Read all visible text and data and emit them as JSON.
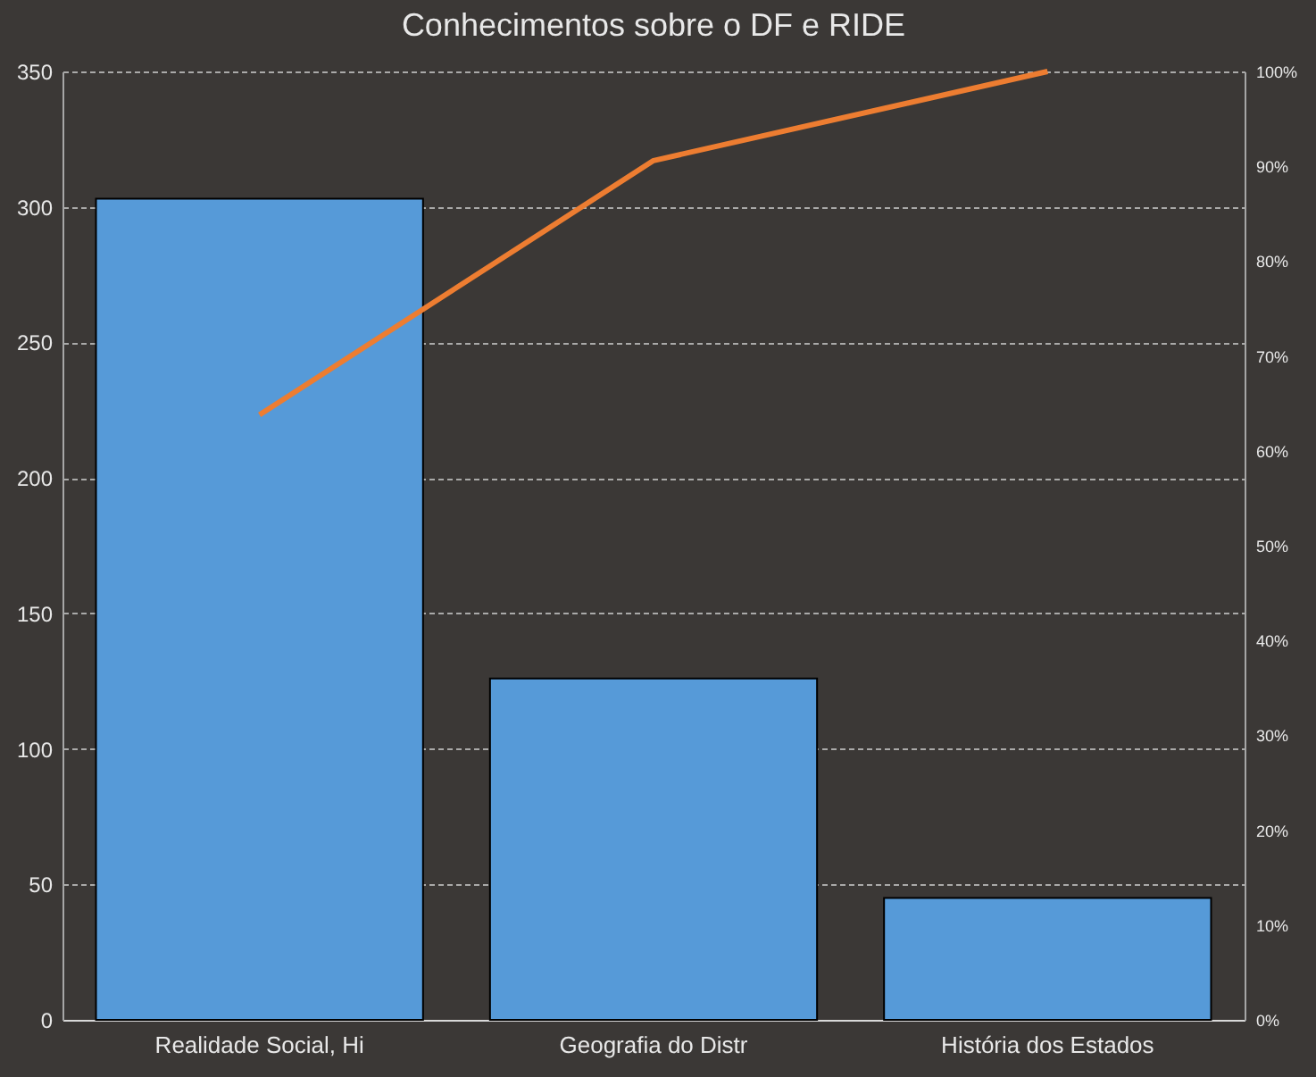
{
  "chart_data": {
    "type": "bar",
    "title": "Conhecimentos  sobre o DF e RIDE",
    "categories": [
      "Realidade Social, Hi",
      "Geografia do Distr",
      "História dos Estados"
    ],
    "series": [
      {
        "color": "#569ad8",
        "values": [
          303,
          126,
          45
        ]
      },
      {
        "type": "line",
        "axis": "y2",
        "color": "#ed7d31",
        "values": [
          63.8,
          90.6,
          100
        ]
      }
    ],
    "ylim": [
      0,
      350
    ],
    "yticks": [
      0,
      50,
      100,
      150,
      200,
      250,
      300,
      350
    ],
    "y2lim": [
      0,
      100
    ],
    "y2ticks": [
      {
        "value": 0,
        "label": "0%"
      },
      {
        "value": 10,
        "label": "10%"
      },
      {
        "value": 20,
        "label": "20%"
      },
      {
        "value": 30,
        "label": "30%"
      },
      {
        "value": 40,
        "label": "40%"
      },
      {
        "value": 50,
        "label": "50%"
      },
      {
        "value": 60,
        "label": "60%"
      },
      {
        "value": 70,
        "label": "70%"
      },
      {
        "value": 80,
        "label": "80%"
      },
      {
        "value": 90,
        "label": "90%"
      },
      {
        "value": 100,
        "label": "100%"
      }
    ],
    "grid": "y",
    "marker": "none",
    "line_style": "solid"
  }
}
